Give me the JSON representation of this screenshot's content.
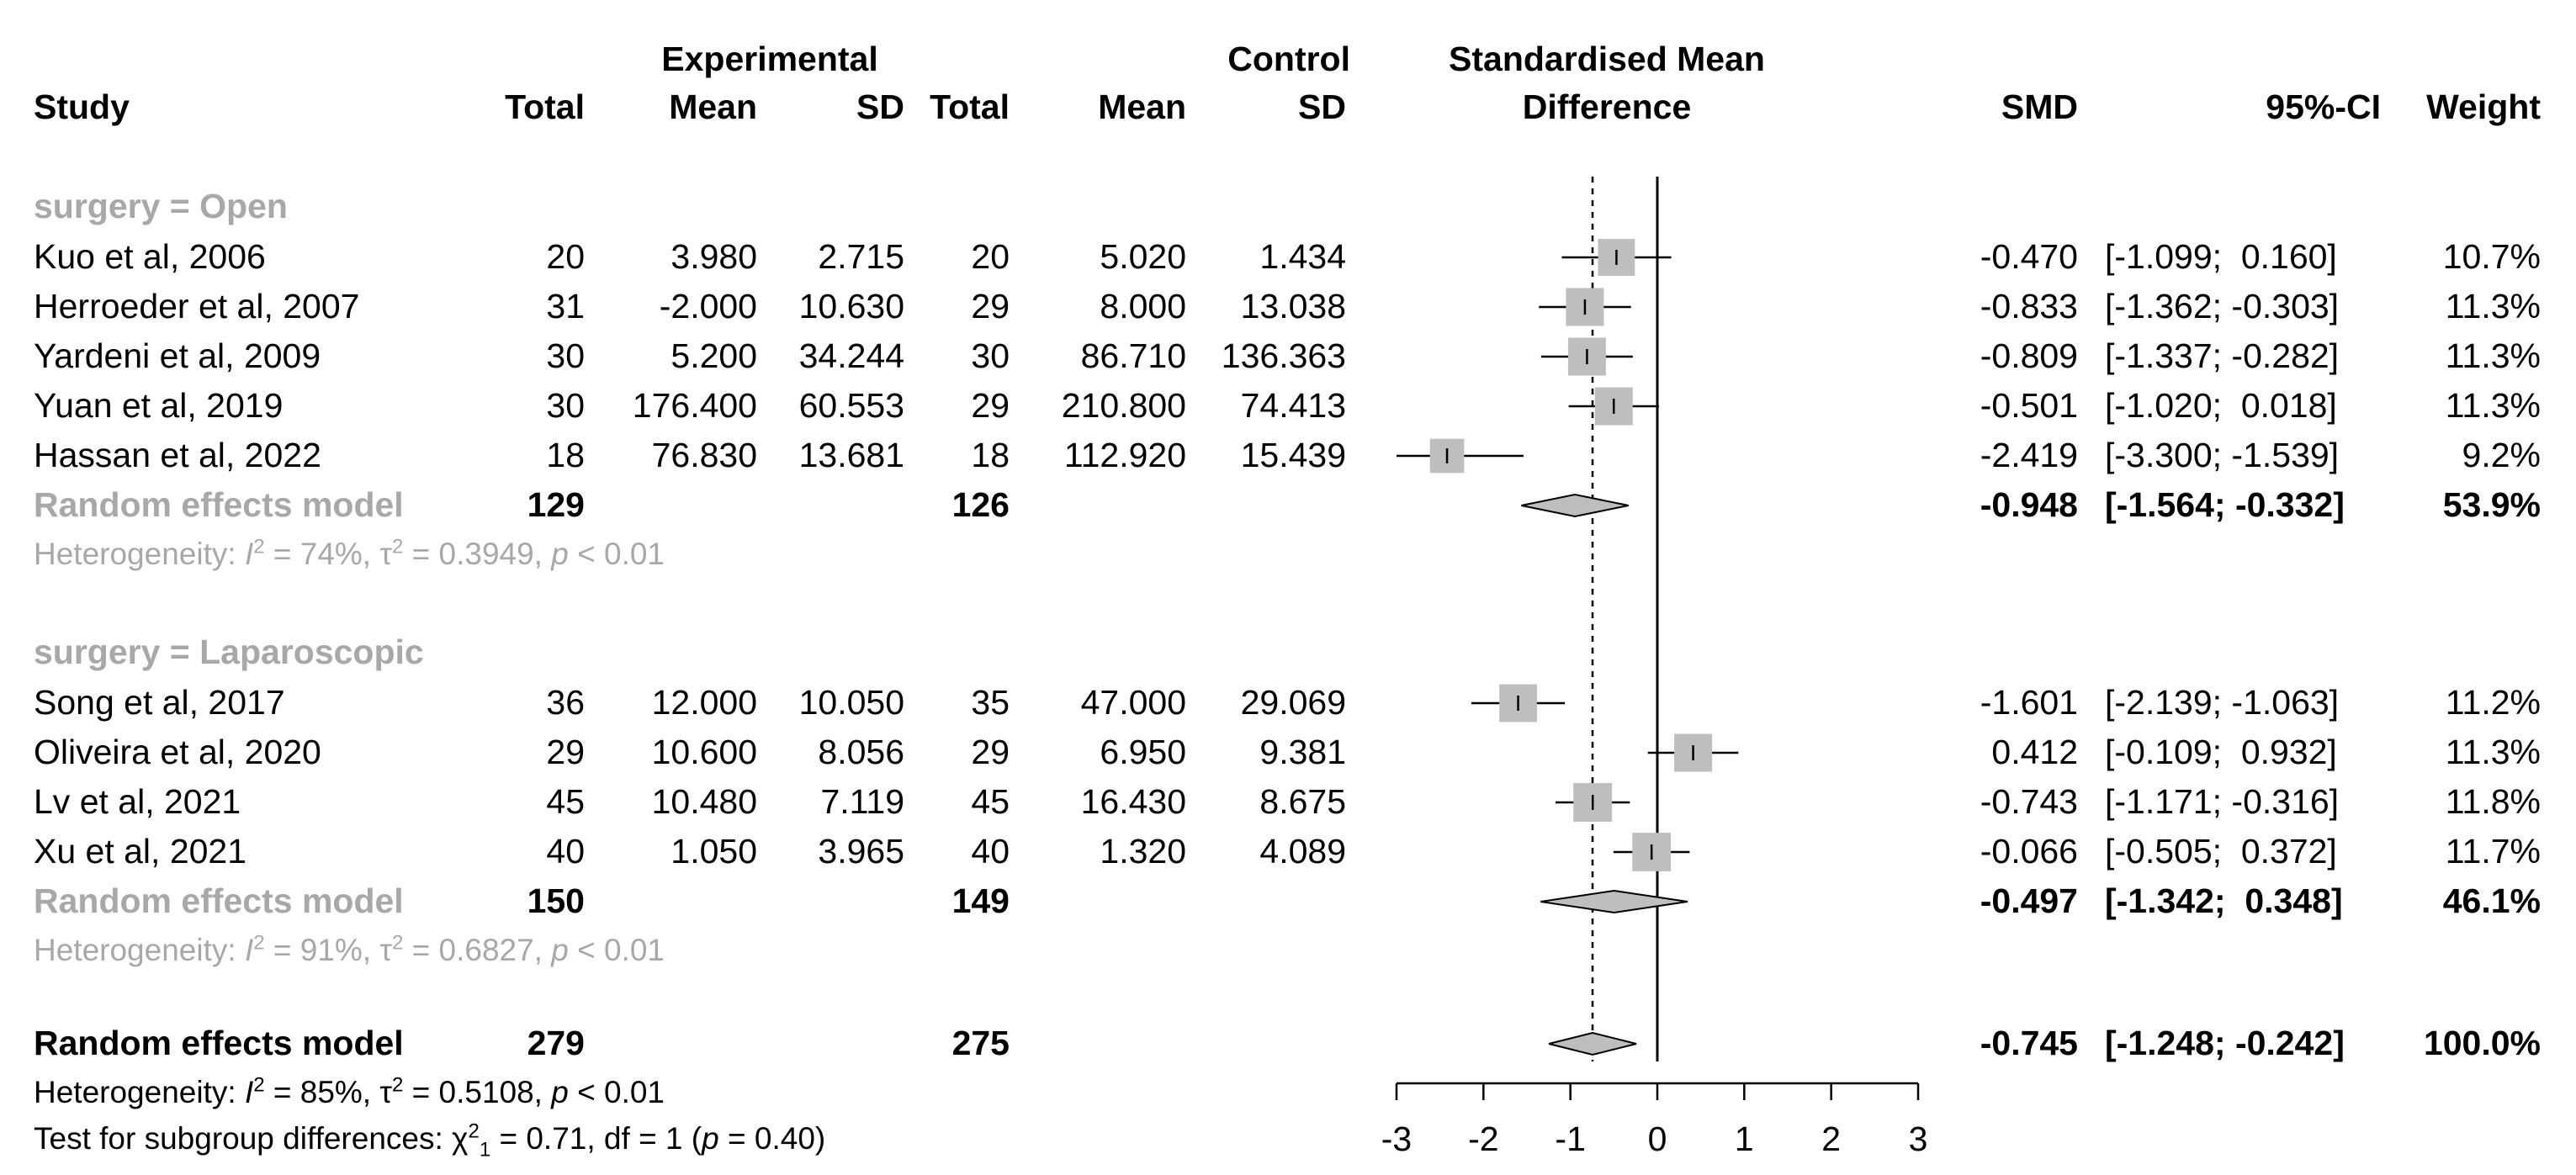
{
  "headers": {
    "study": "Study",
    "experimental": "Experimental",
    "control": "Control",
    "smd_title_1": "Standardised Mean",
    "smd_title_2": "Difference",
    "total_e": "Total",
    "mean_e": "Mean",
    "sd_e": "SD",
    "total_c": "Total",
    "mean_c": "Mean",
    "sd_c": "SD",
    "smd": "SMD",
    "ci": "95%-CI",
    "weight": "Weight"
  },
  "subgroups": [
    {
      "label": "surgery = Open",
      "studies": [
        {
          "study": "Kuo et al, 2006",
          "total_e": "20",
          "mean_e": "3.980",
          "sd_e": "2.715",
          "total_c": "20",
          "mean_c": "5.020",
          "sd_c": "1.434",
          "smd_text": "-0.470",
          "ci_text": "[-1.099;  0.160]",
          "weight": "10.7%",
          "smd": -0.47,
          "lo": -1.099,
          "hi": 0.16,
          "w": 10.7
        },
        {
          "study": "Herroeder et al, 2007",
          "total_e": "31",
          "mean_e": "-2.000",
          "sd_e": "10.630",
          "total_c": "29",
          "mean_c": "8.000",
          "sd_c": "13.038",
          "smd_text": "-0.833",
          "ci_text": "[-1.362; -0.303]",
          "weight": "11.3%",
          "smd": -0.833,
          "lo": -1.362,
          "hi": -0.303,
          "w": 11.3
        },
        {
          "study": "Yardeni et al, 2009",
          "total_e": "30",
          "mean_e": "5.200",
          "sd_e": "34.244",
          "total_c": "30",
          "mean_c": "86.710",
          "sd_c": "136.363",
          "smd_text": "-0.809",
          "ci_text": "[-1.337; -0.282]",
          "weight": "11.3%",
          "smd": -0.809,
          "lo": -1.337,
          "hi": -0.282,
          "w": 11.3
        },
        {
          "study": "Yuan et al, 2019",
          "total_e": "30",
          "mean_e": "176.400",
          "sd_e": "60.553",
          "total_c": "29",
          "mean_c": "210.800",
          "sd_c": "74.413",
          "smd_text": "-0.501",
          "ci_text": "[-1.020;  0.018]",
          "weight": "11.3%",
          "smd": -0.501,
          "lo": -1.02,
          "hi": 0.018,
          "w": 11.3
        },
        {
          "study": "Hassan et al, 2022",
          "total_e": "18",
          "mean_e": "76.830",
          "sd_e": "13.681",
          "total_c": "18",
          "mean_c": "112.920",
          "sd_c": "15.439",
          "smd_text": "-2.419",
          "ci_text": "[-3.300; -1.539]",
          "weight": "9.2%",
          "smd": -2.419,
          "lo": -3.3,
          "hi": -1.539,
          "w": 9.2
        }
      ],
      "model": {
        "label": "Random effects model",
        "total_e": "129",
        "total_c": "126",
        "smd_text": "-0.948",
        "ci_text": "[-1.564; -0.332]",
        "weight": "53.9%",
        "smd": -0.948,
        "lo": -1.564,
        "hi": -0.332
      },
      "heterogeneity": {
        "prefix": "Heterogeneity: ",
        "i2_label": "I",
        "i2_exp": "2",
        "i2_value": " = 74%, ",
        "tau_label": "τ",
        "tau_exp": "2",
        "tau_value": " = 0.3949, ",
        "p_label": "p",
        "p_value": " < 0.01"
      }
    },
    {
      "label": "surgery = Laparoscopic",
      "studies": [
        {
          "study": "Song et al, 2017",
          "total_e": "36",
          "mean_e": "12.000",
          "sd_e": "10.050",
          "total_c": "35",
          "mean_c": "47.000",
          "sd_c": "29.069",
          "smd_text": "-1.601",
          "ci_text": "[-2.139; -1.063]",
          "weight": "11.2%",
          "smd": -1.601,
          "lo": -2.139,
          "hi": -1.063,
          "w": 11.2
        },
        {
          "study": "Oliveira et al, 2020",
          "total_e": "29",
          "mean_e": "10.600",
          "sd_e": "8.056",
          "total_c": "29",
          "mean_c": "6.950",
          "sd_c": "9.381",
          "smd_text": "0.412",
          "ci_text": "[-0.109;  0.932]",
          "weight": "11.3%",
          "smd": 0.412,
          "lo": -0.109,
          "hi": 0.932,
          "w": 11.3
        },
        {
          "study": "Lv et al, 2021",
          "total_e": "45",
          "mean_e": "10.480",
          "sd_e": "7.119",
          "total_c": "45",
          "mean_c": "16.430",
          "sd_c": "8.675",
          "smd_text": "-0.743",
          "ci_text": "[-1.171; -0.316]",
          "weight": "11.8%",
          "smd": -0.743,
          "lo": -1.171,
          "hi": -0.316,
          "w": 11.8
        },
        {
          "study": "Xu et al, 2021",
          "total_e": "40",
          "mean_e": "1.050",
          "sd_e": "3.965",
          "total_c": "40",
          "mean_c": "1.320",
          "sd_c": "4.089",
          "smd_text": "-0.066",
          "ci_text": "[-0.505;  0.372]",
          "weight": "11.7%",
          "smd": -0.066,
          "lo": -0.505,
          "hi": 0.372,
          "w": 11.7
        }
      ],
      "model": {
        "label": "Random effects model",
        "total_e": "150",
        "total_c": "149",
        "smd_text": "-0.497",
        "ci_text": "[-1.342;  0.348]",
        "weight": "46.1%",
        "smd": -0.497,
        "lo": -1.342,
        "hi": 0.348
      },
      "heterogeneity": {
        "prefix": "Heterogeneity: ",
        "i2_label": "I",
        "i2_exp": "2",
        "i2_value": " = 91%, ",
        "tau_label": "τ",
        "tau_exp": "2",
        "tau_value": " = 0.6827, ",
        "p_label": "p",
        "p_value": " < 0.01"
      }
    }
  ],
  "overall": {
    "label": "Random effects model",
    "total_e": "279",
    "total_c": "275",
    "smd_text": "-0.745",
    "ci_text": "[-1.248; -0.242]",
    "weight": "100.0%",
    "smd": -0.745,
    "lo": -1.248,
    "hi": -0.242,
    "heterogeneity": {
      "prefix": "Heterogeneity: ",
      "i2_label": "I",
      "i2_exp": "2",
      "i2_value": " = 85%, ",
      "tau_label": "τ",
      "tau_exp": "2",
      "tau_value": " = 0.5108, ",
      "p_label": "p",
      "p_value": " < 0.01"
    },
    "subgroup_test": {
      "prefix": "Test for subgroup differences: ",
      "chi_label": "χ",
      "chi_exp": "2",
      "chi_sub": "1",
      "chi_value": " = 0.71, df = 1 (",
      "p_label": "p",
      "p_value": " = 0.40)"
    }
  },
  "chart_data": {
    "type": "forest",
    "xlim": [
      -3,
      3
    ],
    "x_ticks": [
      -3,
      -2,
      -1,
      0,
      1,
      2,
      3
    ],
    "x_tick_labels": [
      "-3",
      "-2",
      "-1",
      "0",
      "1",
      "2",
      "3"
    ],
    "null_line": 0,
    "overall_line": -0.745,
    "colors": {
      "square": "#bebebe",
      "diamond": "#bebebe",
      "ci_line": "#000000",
      "subgroup_text": "#a8a8a8"
    }
  }
}
